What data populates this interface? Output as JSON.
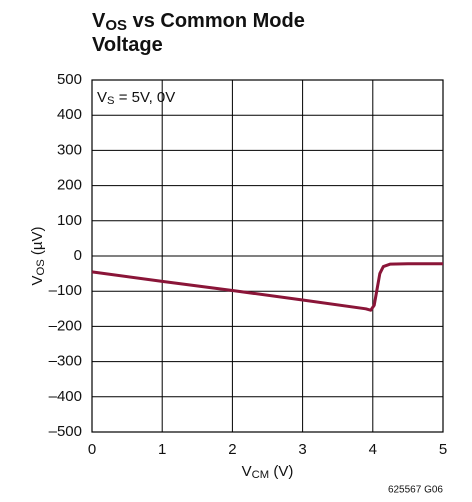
{
  "chart_data": {
    "type": "line",
    "title": [
      "V",
      "OS",
      " vs Common Mode",
      "Voltage"
    ],
    "xlabel": [
      "V",
      "CM",
      " (V)"
    ],
    "ylabel": [
      "V",
      "OS",
      " (µV)"
    ],
    "annotation": [
      "V",
      "S",
      " = 5V, 0V"
    ],
    "footnote": "625567 G06",
    "x": [
      0,
      1,
      2,
      3,
      3.9,
      3.97,
      4.02,
      4.06,
      4.1,
      4.15,
      4.25,
      4.5,
      5
    ],
    "series": [
      {
        "name": "VOS",
        "color": "#8a1538",
        "values": [
          -45,
          -72,
          -98,
          -125,
          -150,
          -154,
          -140,
          -95,
          -50,
          -30,
          -23,
          -22,
          -22
        ]
      }
    ],
    "xlim": [
      0,
      5
    ],
    "xticks": [
      0,
      1,
      2,
      3,
      4,
      5
    ],
    "ylim": [
      -500,
      500
    ],
    "yticks": [
      {
        "value": -500,
        "label": "–500"
      },
      {
        "value": -400,
        "label": "–400"
      },
      {
        "value": -300,
        "label": "–300"
      },
      {
        "value": -200,
        "label": "–200"
      },
      {
        "value": -100,
        "label": "–100"
      },
      0,
      100,
      200,
      300,
      400,
      500
    ],
    "grid": true
  }
}
